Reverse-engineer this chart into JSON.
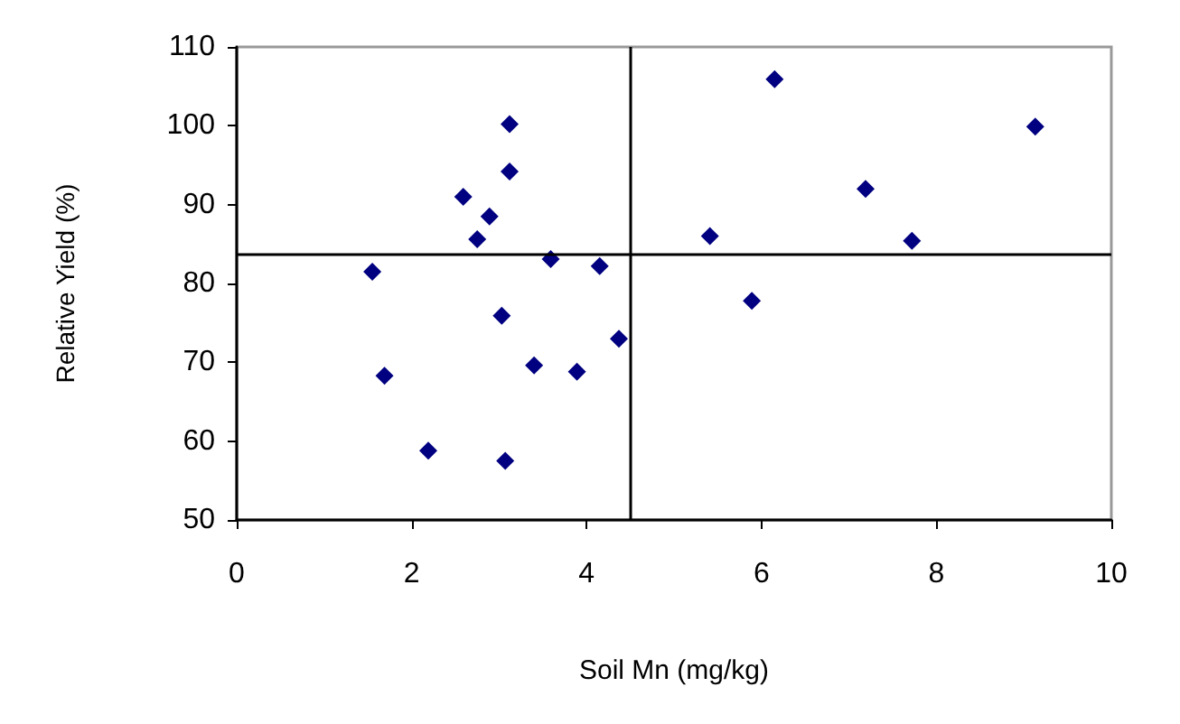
{
  "chart_data": {
    "type": "scatter",
    "xlabel": "Soil Mn (mg/kg)",
    "ylabel": "Relative Yield (%)",
    "x": [
      3.12,
      3.12,
      2.59,
      2.89,
      2.75,
      3.59,
      4.15,
      1.55,
      3.03,
      4.37,
      3.4,
      3.89,
      1.69,
      2.19,
      3.07,
      6.15,
      9.13,
      7.19,
      5.41,
      7.72,
      5.89
    ],
    "values": [
      100.2,
      94.2,
      91,
      88.5,
      85.6,
      83.1,
      82.2,
      81.5,
      75.9,
      73,
      69.6,
      68.8,
      68.3,
      58.8,
      57.5,
      105.9,
      99.9,
      92,
      86,
      85.4,
      77.8
    ],
    "color": "#000080",
    "marker": "diamond",
    "xlim": [
      0,
      10
    ],
    "xticks": [
      0,
      2,
      4,
      6,
      8,
      10
    ],
    "ylim": [
      50,
      110
    ],
    "yticks": [
      50,
      60,
      70,
      80,
      90,
      100,
      110
    ],
    "grid": false,
    "ref_lines": [
      {
        "axis": "x",
        "value": 4.5,
        "color": "#000000"
      },
      {
        "axis": "y",
        "value": 83.8,
        "color": "#000000"
      }
    ]
  }
}
